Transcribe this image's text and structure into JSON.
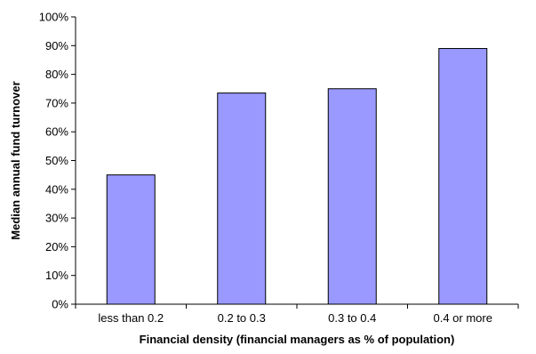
{
  "chart_data": {
    "type": "bar",
    "categories": [
      "less than 0.2",
      "0.2 to 0.3",
      "0.3 to 0.4",
      "0.4 or more"
    ],
    "values": [
      45,
      73.5,
      75,
      89
    ],
    "xlabel": "Financial density (financial managers as % of population)",
    "ylabel": "Median annual fund turnover",
    "ylim": [
      0,
      100
    ],
    "ytick_step": 10,
    "ytick_suffix": "%",
    "grid": false,
    "legend": "none",
    "bar_color": "#9999ff",
    "bar_edge_color": "#000000"
  }
}
